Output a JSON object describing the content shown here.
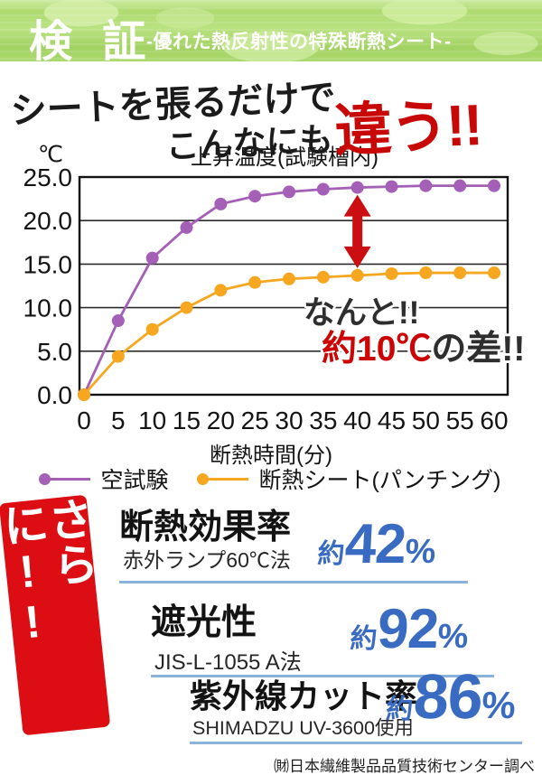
{
  "header": {
    "title": "検 証",
    "subtitle": "-優れた熱反射性の特殊断熱シート-"
  },
  "headline": {
    "line1": "シートを張るだけで",
    "line2_prefix": "こんなにも",
    "line2_emph": "違う!!",
    "emph_color": "#c80707"
  },
  "chart_data": {
    "type": "line",
    "title": "上昇温度(試験槽内)",
    "y_unit_label": "℃",
    "xlabel": "断熱時間(分)",
    "x": [
      0,
      5,
      10,
      15,
      20,
      25,
      30,
      35,
      40,
      45,
      50,
      55,
      60
    ],
    "ylim": [
      0,
      25
    ],
    "ytick_step": 5,
    "grid": "horizontal",
    "legend_position": "bottom",
    "series": [
      {
        "name": "空試験",
        "color": "#a45fb6",
        "values": [
          0,
          8.5,
          15.7,
          19.2,
          21.9,
          22.8,
          23.3,
          23.6,
          23.8,
          23.9,
          24.0,
          24.0,
          24.0
        ]
      },
      {
        "name": "断熱シート(パンチング)",
        "color": "#f6a71f",
        "values": [
          0,
          4.4,
          7.5,
          10.0,
          12.0,
          12.9,
          13.3,
          13.5,
          13.7,
          13.9,
          14.0,
          14.0,
          14.0
        ]
      }
    ],
    "annotation": {
      "line1": "なんと!!",
      "line2_red": "約10℃",
      "line2_dark": "の差!!",
      "red_color": "#cc0404",
      "arrow_color": "#cb0e12",
      "arrow_x_min": 40
    }
  },
  "stats": {
    "ribbon": {
      "label": "さらに!!",
      "color": "#dc0e13"
    },
    "accent_color": "#3a6bc2",
    "separator_color": "#8ab2da",
    "rows": [
      {
        "title": "断熱効果率",
        "method": "赤外ランプ60℃法",
        "prefix": "約",
        "value": "42",
        "unit": "%"
      },
      {
        "title": "遮光性",
        "method": "JIS-L-1055 A法",
        "prefix": "約",
        "value": "92",
        "unit": "%"
      },
      {
        "title": "紫外線カット率",
        "method": "SHIMADZU UV-3600使用",
        "prefix": "約",
        "value": "86",
        "unit": "%"
      }
    ]
  },
  "footer": {
    "source": "㈶日本繊維製品品質技術センター調べ"
  }
}
